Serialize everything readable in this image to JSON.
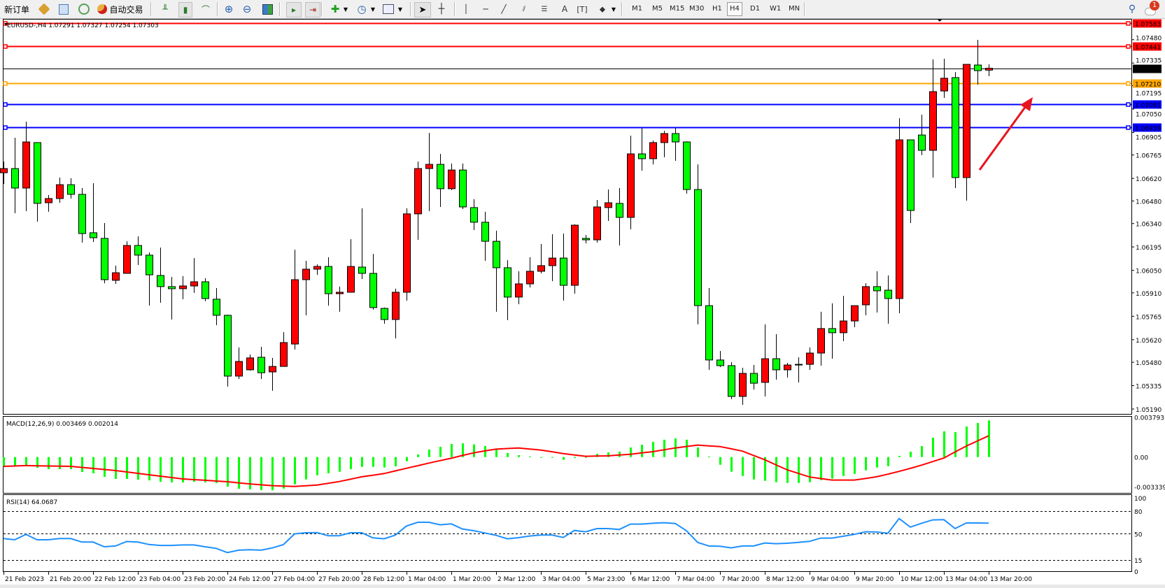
{
  "toolbar": {
    "new_order": "新订单",
    "auto_trading": "自动交易",
    "timeframes": [
      "M1",
      "M5",
      "M15",
      "M30",
      "H1",
      "H4",
      "D1",
      "W1",
      "MN"
    ],
    "active_timeframe": "H4",
    "drawing_text_tool": "A",
    "notification_count": "1"
  },
  "chart": {
    "header": "EURUSD-,H4  1.07291 1.07327 1.07254 1.07303"
  },
  "chart_data": {
    "type": "candlestick",
    "symbol": "EURUSD-",
    "timeframe": "H4",
    "colors": {
      "bull": "#ff0000",
      "bear": "#00ff00",
      "outline": "#000000"
    },
    "ohlc_fields": [
      "open",
      "high",
      "low",
      "close"
    ],
    "ohlc": [
      [
        1.06655,
        1.06724,
        1.06586,
        1.06681
      ],
      [
        1.06681,
        1.06872,
        1.06404,
        1.0656
      ],
      [
        1.0656,
        1.06972,
        1.06417,
        1.06846
      ],
      [
        1.06842,
        1.06842,
        1.06352,
        1.06465
      ],
      [
        1.06469,
        1.06517,
        1.06413,
        1.06495
      ],
      [
        1.06495,
        1.06625,
        1.06469,
        1.06581
      ],
      [
        1.06581,
        1.06621,
        1.06495,
        1.06521
      ],
      [
        1.06521,
        1.0656,
        1.06222,
        1.06278
      ],
      [
        1.06283,
        1.0659,
        1.06226,
        1.06252
      ],
      [
        1.06248,
        1.06343,
        1.0597,
        1.05992
      ],
      [
        1.05988,
        1.06079,
        1.05966,
        1.06035
      ],
      [
        1.06031,
        1.0623,
        1.06031,
        1.06204
      ],
      [
        1.06204,
        1.06261,
        1.06083,
        1.06144
      ],
      [
        1.06144,
        1.06161,
        1.05831,
        1.06022
      ],
      [
        1.06018,
        1.06191,
        1.05849,
        1.05949
      ],
      [
        1.05949,
        1.06009,
        1.05745,
        1.05936
      ],
      [
        1.05936,
        1.06014,
        1.05871,
        1.05953
      ],
      [
        1.05953,
        1.06126,
        1.0591,
        1.05979
      ],
      [
        1.05979,
        1.06001,
        1.05858,
        1.05875
      ],
      [
        1.05871,
        1.0594,
        1.0571,
        1.05771
      ],
      [
        1.05771,
        1.05775,
        1.05329,
        1.05394
      ],
      [
        1.05394,
        1.05572,
        1.05376,
        1.05485
      ],
      [
        1.05433,
        1.05528,
        1.05428,
        1.05507
      ],
      [
        1.05511,
        1.05576,
        1.05376,
        1.05415
      ],
      [
        1.0542,
        1.05507,
        1.05303,
        1.05454
      ],
      [
        1.05454,
        1.05667,
        1.05454,
        1.05602
      ],
      [
        1.05593,
        1.06178,
        1.05559,
        1.05992
      ],
      [
        1.05992,
        1.06109,
        1.05771,
        1.06057
      ],
      [
        1.06057,
        1.06087,
        1.06022,
        1.06074
      ],
      [
        1.06074,
        1.06131,
        1.05831,
        1.05905
      ],
      [
        1.05905,
        1.05949,
        1.05793,
        1.05914
      ],
      [
        1.05914,
        1.06243,
        1.05914,
        1.06074
      ],
      [
        1.0607,
        1.06434,
        1.05996,
        1.06031
      ],
      [
        1.06031,
        1.06152,
        1.05806,
        1.05819
      ],
      [
        1.05814,
        1.05819,
        1.05719,
        1.05745
      ],
      [
        1.05745,
        1.05936,
        1.05628,
        1.05914
      ],
      [
        1.05914,
        1.06434,
        1.05862,
        1.064
      ],
      [
        1.064,
        1.06724,
        1.06239,
        1.06681
      ],
      [
        1.06681,
        1.06902,
        1.06417,
        1.06707
      ],
      [
        1.06707,
        1.06772,
        1.06443,
        1.06556
      ],
      [
        1.06556,
        1.06712,
        1.06547,
        1.06672
      ],
      [
        1.06672,
        1.06712,
        1.0643,
        1.06443
      ],
      [
        1.06439,
        1.06491,
        1.063,
        1.06348
      ],
      [
        1.06348,
        1.06413,
        1.06109,
        1.0623
      ],
      [
        1.0623,
        1.06296,
        1.05793,
        1.06066
      ],
      [
        1.06066,
        1.06113,
        1.05741,
        1.05884
      ],
      [
        1.05884,
        1.06044,
        1.0584,
        1.05966
      ],
      [
        1.05966,
        1.06131,
        1.05944,
        1.06044
      ],
      [
        1.06044,
        1.06213,
        1.06031,
        1.06079
      ],
      [
        1.06079,
        1.06274,
        1.05983,
        1.06126
      ],
      [
        1.06126,
        1.06278,
        1.05862,
        1.05957
      ],
      [
        1.05957,
        1.06335,
        1.05905,
        1.0633
      ],
      [
        1.06248,
        1.06269,
        1.06217,
        1.06239
      ],
      [
        1.06239,
        1.06486,
        1.06222,
        1.06443
      ],
      [
        1.06439,
        1.06551,
        1.06356,
        1.06469
      ],
      [
        1.06465,
        1.0656,
        1.06204,
        1.06378
      ],
      [
        1.06378,
        1.06885,
        1.06304,
        1.06772
      ],
      [
        1.06772,
        1.06933,
        1.06668,
        1.06742
      ],
      [
        1.06742,
        1.06855,
        1.06707,
        1.06842
      ],
      [
        1.06842,
        1.06915,
        1.06751,
        1.06898
      ],
      [
        1.06898,
        1.06933,
        1.06729,
        1.06846
      ],
      [
        1.06846,
        1.0685,
        1.06525,
        1.06551
      ],
      [
        1.06551,
        1.06707,
        1.05715,
        1.05831
      ],
      [
        1.05831,
        1.0594,
        1.05433,
        1.05494
      ],
      [
        1.05494,
        1.0555,
        1.0545,
        1.05459
      ],
      [
        1.05459,
        1.05481,
        1.05251,
        1.05268
      ],
      [
        1.05268,
        1.05446,
        1.05216,
        1.05411
      ],
      [
        1.05411,
        1.05463,
        1.05311,
        1.0535
      ],
      [
        1.05355,
        1.05715,
        1.05268,
        1.05502
      ],
      [
        1.05502,
        1.05654,
        1.05372,
        1.05433
      ],
      [
        1.05433,
        1.05476,
        1.05385,
        1.05463
      ],
      [
        1.05467,
        1.05511,
        1.05355,
        1.05463
      ],
      [
        1.05467,
        1.05572,
        1.05433,
        1.05537
      ],
      [
        1.05537,
        1.05793,
        1.05459,
        1.05689
      ],
      [
        1.05689,
        1.05845,
        1.05502,
        1.05663
      ],
      [
        1.05663,
        1.05892,
        1.05611,
        1.05736
      ],
      [
        1.05736,
        1.05831,
        1.05697,
        1.05831
      ],
      [
        1.05836,
        1.0597,
        1.05771,
        1.05949
      ],
      [
        1.05949,
        1.06044,
        1.05788,
        1.05923
      ],
      [
        1.05927,
        1.06018,
        1.05719,
        1.05875
      ],
      [
        1.05875,
        1.06993,
        1.05784,
        1.06859
      ],
      [
        1.06859,
        1.06859,
        1.06343,
        1.06421
      ],
      [
        1.06889,
        1.07015,
        1.06764,
        1.06794
      ],
      [
        1.06794,
        1.07358,
        1.06625,
        1.07158
      ],
      [
        1.07162,
        1.07362,
        1.07119,
        1.07241
      ],
      [
        1.07245,
        1.07279,
        1.0656,
        1.06625
      ],
      [
        1.06625,
        1.07327,
        1.06482,
        1.07327
      ],
      [
        1.07323,
        1.07479,
        1.07201,
        1.07288
      ],
      [
        1.07291,
        1.07327,
        1.07254,
        1.07303
      ]
    ],
    "price_ticks": [
      "1.07480",
      "1.07335",
      "1.07195",
      "1.07050",
      "1.06905",
      "1.06765",
      "1.06620",
      "1.06480",
      "1.06340",
      "1.06195",
      "1.06050",
      "1.05910",
      "1.05765",
      "1.05620",
      "1.05480",
      "1.05335",
      "1.05190"
    ],
    "price_range": [
      1.0519,
      1.07583
    ],
    "horizontal_lines": [
      {
        "label": "1.07583",
        "color": "#ff0000"
      },
      {
        "label": "1.07441",
        "color": "#ff0000"
      },
      {
        "label": "1.07303",
        "color": "#000000"
      },
      {
        "label": "1.07210",
        "color": "#ffa500"
      },
      {
        "label": "1.07081",
        "color": "#0000ff"
      },
      {
        "label": "1.06939",
        "color": "#0000ff"
      }
    ],
    "time_labels": [
      "21 Feb 2023",
      "21 Feb 20:00",
      "22 Feb 12:00",
      "23 Feb 04:00",
      "23 Feb 20:00",
      "24 Feb 12:00",
      "27 Feb 04:00",
      "27 Feb 20:00",
      "28 Feb 12:00",
      "1 Mar 04:00",
      "1 Mar 20:00",
      "2 Mar 12:00",
      "3 Mar 04:00",
      "5 Mar 23:00",
      "6 Mar 12:00",
      "7 Mar 04:00",
      "7 Mar 20:00",
      "8 Mar 12:00",
      "9 Mar 04:00",
      "9 Mar 20:00",
      "10 Mar 12:00",
      "13 Mar 04:00",
      "13 Mar 20:00"
    ],
    "time_label_every_bars": 4,
    "macd": {
      "label": "MACD(12,26,9) 0.003469 0.002014",
      "histogram_color": "#00ff00",
      "signal_color": "#ff0000",
      "axis_labels": [
        "0.003793",
        "0.00",
        "-0.003339"
      ],
      "histogram": [
        -0.00088,
        -0.00088,
        -0.00088,
        -0.00101,
        -0.00115,
        -0.00115,
        -0.00115,
        -0.00141,
        -0.00154,
        -0.00187,
        -0.00207,
        -0.00207,
        -0.00214,
        -0.00221,
        -0.00234,
        -0.0024,
        -0.0024,
        -0.00234,
        -0.0024,
        -0.00247,
        -0.0028,
        -0.003,
        -0.00306,
        -0.00313,
        -0.00315,
        -0.00298,
        -0.00258,
        -0.00212,
        -0.00172,
        -0.00154,
        -0.00139,
        -0.00115,
        -0.00093,
        -0.00093,
        -0.00099,
        -0.00088,
        -0.0004,
        0.00024,
        0.00071,
        0.00097,
        0.00124,
        0.0013,
        0.00119,
        0.00104,
        0.00071,
        0.00038,
        0.00018,
        5e-05,
        -4e-05,
        -4e-05,
        -0.00026,
        -9e-05,
        -2e-05,
        0.00031,
        0.00044,
        0.00051,
        0.00091,
        0.00117,
        0.00144,
        0.00164,
        0.00177,
        0.00164,
        0.00091,
        5e-05,
        -0.00073,
        -0.00139,
        -0.00179,
        -0.00212,
        -0.00225,
        -0.00238,
        -0.00245,
        -0.00245,
        -0.00238,
        -0.00218,
        -0.00205,
        -0.00179,
        -0.00159,
        -0.00126,
        -0.00099,
        -0.00086,
        0.00011,
        0.00051,
        0.00104,
        0.00183,
        0.00243,
        0.00236,
        0.00289,
        0.00322,
        0.003469
      ],
      "signal": [
        -0.00088,
        -0.00085,
        -0.00081,
        -0.00083,
        -0.00085,
        -0.00086,
        -0.00088,
        -0.00098,
        -0.00108,
        -0.00118,
        -0.00128,
        -0.00141,
        -0.00154,
        -0.00168,
        -0.00181,
        -0.00194,
        -0.00207,
        -0.00214,
        -0.0022,
        -0.00227,
        -0.00234,
        -0.00244,
        -0.00254,
        -0.00263,
        -0.00271,
        -0.00275,
        -0.00278,
        -0.00272,
        -0.00265,
        -0.00249,
        -0.00232,
        -0.0021,
        -0.00187,
        -0.00172,
        -0.00156,
        -0.00131,
        -0.00106,
        -0.00082,
        -0.00057,
        -0.00034,
        -0.00011,
        0.00015,
        0.0004,
        0.00058,
        0.00075,
        0.00081,
        0.00086,
        0.00076,
        0.00066,
        0.0005,
        0.00033,
        0.0002,
        7e-05,
        9e-05,
        0.00011,
        0.00019,
        0.00026,
        0.00039,
        0.00051,
        0.00069,
        0.00086,
        0.001,
        0.00113,
        0.00106,
        0.00099,
        0.00078,
        0.00056,
        0.00015,
        -0.00026,
        -0.00074,
        -0.00121,
        -0.00155,
        -0.00189,
        -0.00204,
        -0.00218,
        -0.00218,
        -0.00218,
        -0.00203,
        -0.00187,
        -0.00162,
        -0.00136,
        -0.00107,
        -0.00077,
        -0.00043,
        -9e-05,
        0.00048,
        0.00104,
        0.00153,
        0.002014
      ]
    },
    "rsi": {
      "label": "RSI(14) 64.0687",
      "color": "#1e90ff",
      "levels": [
        80,
        50,
        15
      ],
      "axis_labels": [
        "100",
        "80",
        "50",
        "15",
        "0"
      ],
      "values": [
        43.5,
        41.9,
        49.1,
        41.9,
        41.9,
        43.5,
        43.5,
        38.8,
        38.8,
        32.6,
        33.6,
        39.6,
        38.8,
        35.6,
        34.4,
        34.4,
        35.0,
        35.0,
        32.6,
        30.5,
        24.9,
        28.0,
        28.6,
        28.0,
        31.0,
        35.4,
        49.7,
        51.2,
        51.5,
        47.2,
        47.2,
        51.2,
        51.2,
        44.4,
        43.2,
        48.1,
        60.2,
        65.2,
        65.2,
        61.8,
        63.0,
        56.2,
        54.0,
        50.9,
        47.8,
        43.2,
        44.7,
        46.9,
        48.1,
        48.1,
        45.0,
        54.3,
        52.5,
        56.8,
        56.8,
        55.6,
        62.7,
        62.7,
        63.9,
        64.6,
        63.6,
        54.0,
        38.5,
        33.6,
        33.3,
        31.1,
        33.6,
        33.6,
        37.6,
        36.7,
        37.3,
        38.5,
        39.8,
        44.1,
        44.1,
        46.6,
        49.1,
        52.5,
        52.2,
        50.6,
        70.1,
        58.7,
        63.9,
        68.3,
        68.6,
        56.8,
        64.2,
        64.2,
        64.0687
      ]
    }
  }
}
